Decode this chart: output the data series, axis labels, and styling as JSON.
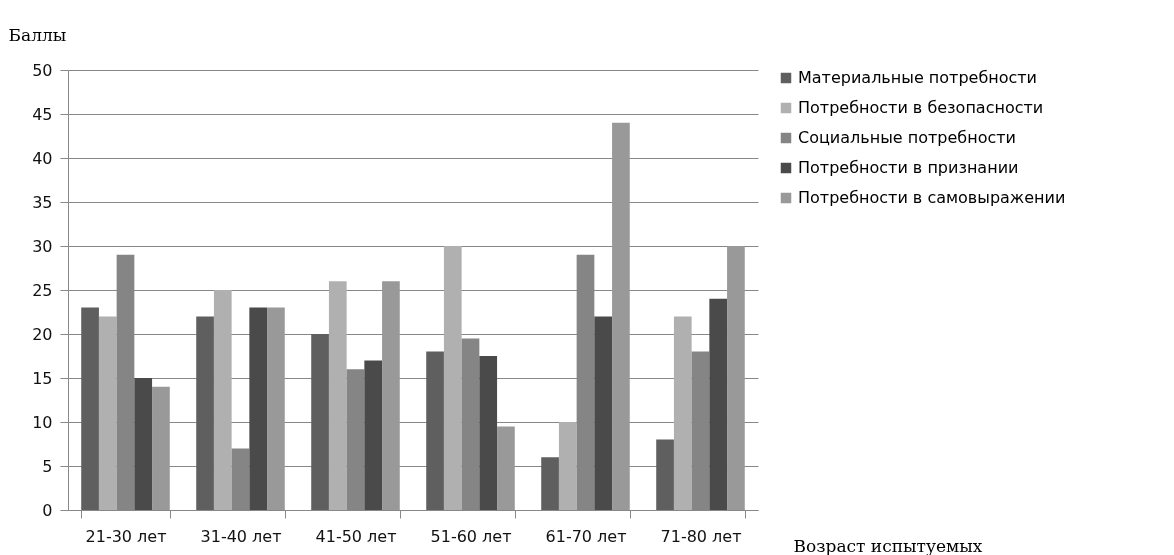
{
  "chart_data": {
    "type": "bar",
    "ylabel": "Баллы",
    "xlabel": "Возраст испытуемых",
    "categories": [
      "21-30 лет",
      "31-40 лет",
      "41-50 лет",
      "51-60 лет",
      "61-70 лет",
      "71-80 лет"
    ],
    "series": [
      {
        "name": "Материальные потребности",
        "color": "#5f5f5f",
        "values": [
          23,
          22,
          20,
          18,
          6,
          8
        ]
      },
      {
        "name": "Потребности в безопасности",
        "color": "#b0b0b0",
        "values": [
          22,
          25,
          26,
          30,
          10,
          22
        ]
      },
      {
        "name": "Социальные потребности",
        "color": "#858585",
        "values": [
          29,
          7,
          16,
          19.5,
          29,
          18
        ]
      },
      {
        "name": "Потребности в признании",
        "color": "#4a4a4a",
        "values": [
          15,
          23,
          17,
          17.5,
          22,
          24
        ]
      },
      {
        "name": "Потребности в самовыражении",
        "color": "#999999",
        "values": [
          14,
          23,
          26,
          9.5,
          44,
          30
        ]
      }
    ],
    "ylim": [
      0,
      50
    ],
    "yticks": [
      0,
      5,
      10,
      15,
      20,
      25,
      30,
      35,
      40,
      45,
      50
    ],
    "grid": "y",
    "legend": "right"
  }
}
